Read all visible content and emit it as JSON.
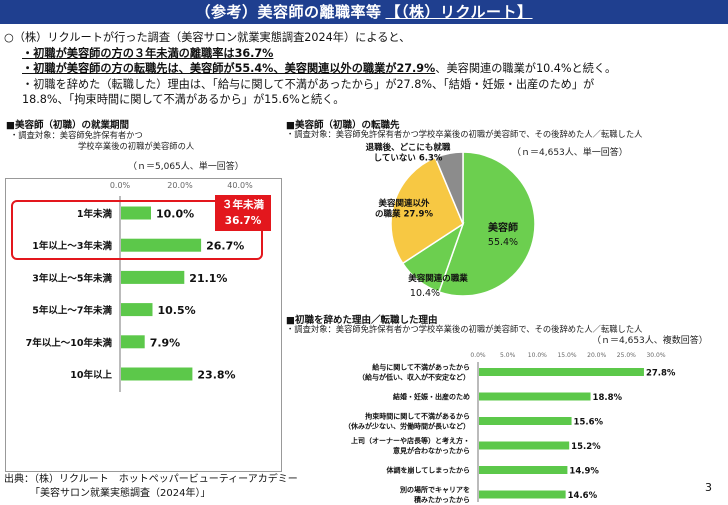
{
  "header": {
    "title": "（参考）美容師の離職率等",
    "source_tag": "【（株）リクルート】"
  },
  "intro": {
    "line1": "○（株）リクルートが行った調査（美容サロン就業実態調査2024年）によると、",
    "bullet1": "・初職が美容師の方の３年未満の離職率は36.7%",
    "bullet2_bold": "・初職が美容師の方の転職先は、美容師が55.4%、美容関連以外の職業が27.9%",
    "bullet2_rest": "、美容関連の職業が10.4%と続く。",
    "bullet3_l1": "・初職を辞めた（転職した）理由は、「給与に関して不満があったから」が27.8%、「結婚・妊娠・出産のため」が",
    "bullet3_l2": "18.8%、「拘束時間に関して不満があるから」が15.6%と続く。"
  },
  "left_chart": {
    "heading": "■美容師（初職）の就業期間",
    "note1": "・調査対象：美容師免許保有者かつ",
    "note2": "学校卒業後の初職が美容師の人",
    "n_label": "（ｎ＝5,065人、単一回答）",
    "callout1": "３年未満",
    "callout2": "36.7%"
  },
  "pie_chart": {
    "heading": "■美容師（初職）の転職先",
    "note": "・調査対象：美容師免許保有者かつ学校卒業後の初職が美容師で、その後辞めた人／転職した人",
    "n_label": "（ｎ＝4,653人、単一回答）"
  },
  "reason_chart": {
    "heading": "■初職を辞めた理由／転職した理由",
    "note": "・調査対象：美容師免許保有者かつ学校卒業後の初職が美容師で、その後辞めた人／転職した人",
    "n_label": "（ｎ＝4,653人、複数回答）"
  },
  "footer": {
    "line1": "出典：（株）リクルート　ホットペッパービューティーアカデミー",
    "line2": "「美容サロン就業実態調査（2024年）」"
  },
  "page_number": "3",
  "colors": {
    "header_bg": "#1f3f8f",
    "bar_green": "#5cc84a",
    "pie_green": "#6ccf4f",
    "pie_yellow": "#f7c843",
    "pie_gray": "#8c8c8c",
    "highlight_red": "#e3171d"
  },
  "chart_data": [
    {
      "type": "bar",
      "orientation": "horizontal",
      "categories": [
        "1年未満",
        "1年以上～3年未満",
        "3年以上～5年未満",
        "5年以上～7年未満",
        "7年以上～10年未満",
        "10年以上"
      ],
      "values": [
        10.0,
        26.7,
        21.1,
        10.5,
        7.9,
        23.8
      ],
      "value_labels": [
        "10.0%",
        "26.7%",
        "21.1%",
        "10.5%",
        "7.9%",
        "23.8%"
      ],
      "ticks": [
        "0.0%",
        "20.0%",
        "40.0%"
      ],
      "xlim": [
        0,
        40
      ]
    },
    {
      "type": "pie",
      "categories": [
        "美容師",
        "美容関連の職業",
        "美容関連以外の職業",
        "退職後、どこにも就職していない"
      ],
      "values": [
        55.4,
        10.4,
        27.9,
        6.3
      ],
      "value_labels": [
        "55.4%",
        "10.4%",
        "27.9%",
        "6.3%"
      ]
    },
    {
      "type": "bar",
      "orientation": "horizontal",
      "categories": [
        "給与に関して不満があったから（給与が低い、収入が不安定など）",
        "結婚・妊娠・出産のため",
        "拘束時間に関して不満があるから（休みが少ない、労働時間が長いなど）",
        "上司（オーナーや店長等）と考え方・意見が合わなかったから",
        "体調を崩してしまったから",
        "別の場所でキャリアを積みたかったから"
      ],
      "label_lines": [
        [
          "給与に関して不満があったから",
          "（給与が低い、収入が不安定など）"
        ],
        [
          "結婚・妊娠・出産のため"
        ],
        [
          "拘束時間に関して不満があるから",
          "（休みが少ない、労働時間が長いなど）"
        ],
        [
          "上司（オーナーや店長等）と考え方・",
          "意見が合わなかったから"
        ],
        [
          "体調を崩してしまったから"
        ],
        [
          "別の場所でキャリアを",
          "積みたかったから"
        ]
      ],
      "values": [
        27.8,
        18.8,
        15.6,
        15.2,
        14.9,
        14.6
      ],
      "value_labels": [
        "27.8%",
        "18.8%",
        "15.6%",
        "15.2%",
        "14.9%",
        "14.6%"
      ],
      "ticks": [
        "0.0%",
        "5.0%",
        "10.0%",
        "15.0%",
        "20.0%",
        "25.0%",
        "30.0%"
      ],
      "xlim": [
        0,
        30
      ]
    }
  ]
}
